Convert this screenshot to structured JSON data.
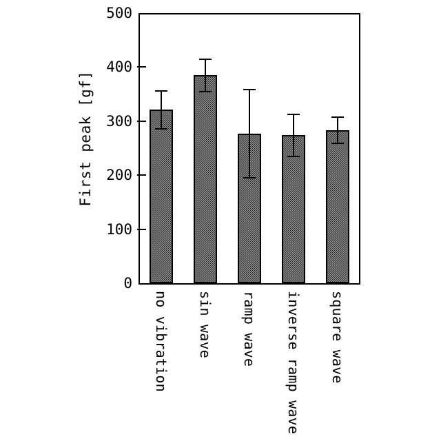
{
  "figure": {
    "background_color": "#ffffff",
    "foreground_color": "#000000"
  },
  "chart_data": {
    "type": "bar",
    "title": "",
    "xlabel": "",
    "ylabel": "First peak [gf]",
    "categories": [
      "no vibration",
      "sin wave",
      "ramp wave",
      "inverse ramp wave",
      "square wave"
    ],
    "values": [
      321,
      385,
      277,
      274,
      283
    ],
    "error_bars": [
      35,
      30,
      82,
      39,
      24
    ],
    "ylim": [
      0,
      500
    ],
    "yticks": [
      0,
      100,
      200,
      300,
      400,
      500
    ],
    "grid": false,
    "legend": "none",
    "x_tick_label_rotation_deg": 90,
    "bar_fill": "fine black dot stipple on white",
    "bar_border_color": "#000000"
  }
}
